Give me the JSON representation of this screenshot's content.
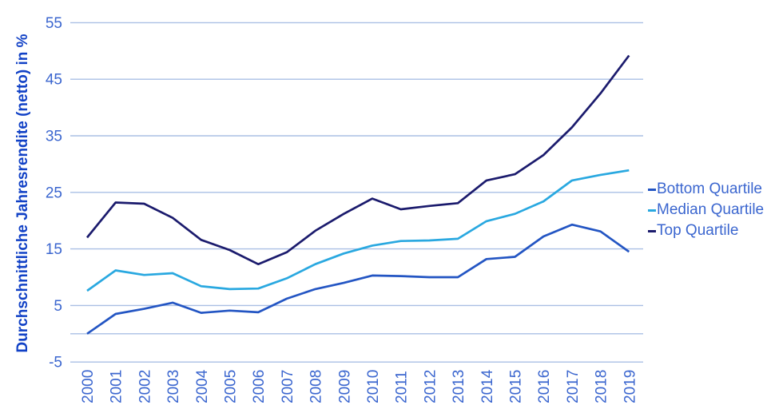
{
  "chart_data": {
    "type": "line",
    "title": "",
    "xlabel": "",
    "ylabel": "Durchschnittliche Jahresrendite (netto) in %",
    "categories": [
      "2000",
      "2001",
      "2002",
      "2003",
      "2004",
      "2005",
      "2006",
      "2007",
      "2008",
      "2009",
      "2010",
      "2011",
      "2012",
      "2013",
      "2014",
      "2015",
      "2016",
      "2017",
      "2018",
      "2019"
    ],
    "series": [
      {
        "name": "Bottom Quartile",
        "color": "#2355c3",
        "values": [
          0.0,
          3.5,
          4.4,
          5.5,
          3.7,
          4.1,
          3.8,
          6.2,
          7.9,
          9.0,
          10.3,
          10.2,
          10.0,
          10.0,
          13.2,
          13.6,
          17.2,
          19.3,
          18.1,
          14.5
        ]
      },
      {
        "name": "Median Quartile",
        "color": "#29a8e0",
        "values": [
          7.6,
          11.2,
          10.4,
          10.7,
          8.4,
          7.9,
          8.0,
          9.8,
          12.3,
          14.2,
          15.6,
          16.4,
          16.5,
          16.8,
          19.9,
          21.2,
          23.4,
          27.1,
          28.1,
          28.9
        ]
      },
      {
        "name": "Top Quartile",
        "color": "#1b1b6d",
        "values": [
          17.0,
          23.2,
          23.0,
          20.5,
          16.6,
          14.8,
          12.3,
          14.4,
          18.2,
          21.2,
          23.9,
          22.0,
          22.6,
          23.1,
          27.1,
          28.2,
          31.6,
          36.5,
          42.5,
          49.2
        ]
      }
    ],
    "ylim": [
      -5,
      55
    ],
    "yticks": [
      55,
      45,
      35,
      25,
      15,
      5,
      -5
    ],
    "baseline": 0,
    "grid": "horizontal-only",
    "legend_position": "right",
    "style": {
      "background": "#ffffff",
      "grid_color": "#aabfe4",
      "axis_text_color": "#3b66cf",
      "axis_title_color": "#1141c6"
    }
  }
}
